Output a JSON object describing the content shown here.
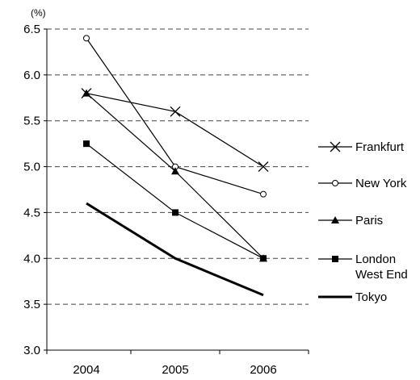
{
  "chart_data": {
    "type": "line",
    "title": "",
    "xlabel": "",
    "ylabel": "(%)",
    "categories": [
      "2004",
      "2005",
      "2006"
    ],
    "ylim": [
      3.0,
      6.5
    ],
    "yticks": [
      "3.0",
      "3.5",
      "4.0",
      "4.5",
      "5.0",
      "5.5",
      "6.0",
      "6.5"
    ],
    "grid": true,
    "legend": "right",
    "series": [
      {
        "name": "Frankfurt",
        "marker": "x-icon",
        "values": [
          5.8,
          5.6,
          5.0
        ]
      },
      {
        "name": "New York",
        "marker": "open-circle-icon",
        "values": [
          6.4,
          5.0,
          4.7
        ]
      },
      {
        "name": "Paris",
        "marker": "filled-triangle-icon",
        "values": [
          5.8,
          4.95,
          4.0
        ]
      },
      {
        "name": "London West End",
        "name_lines": [
          "London",
          "West End"
        ],
        "marker": "filled-square-icon",
        "values": [
          5.25,
          4.5,
          4.0
        ]
      },
      {
        "name": "Tokyo",
        "marker": "none",
        "thick": true,
        "values": [
          4.6,
          4.0,
          3.6
        ]
      }
    ]
  }
}
